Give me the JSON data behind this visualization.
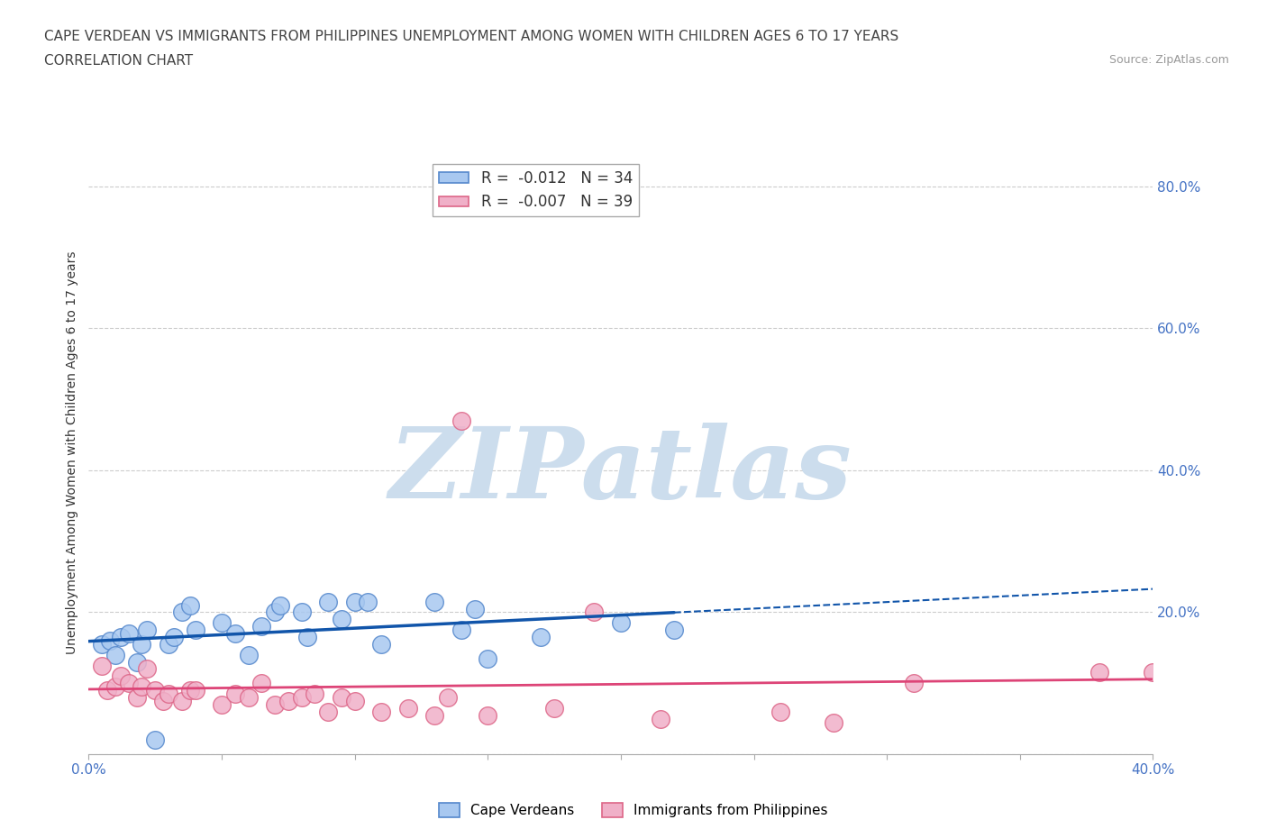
{
  "title_line1": "CAPE VERDEAN VS IMMIGRANTS FROM PHILIPPINES UNEMPLOYMENT AMONG WOMEN WITH CHILDREN AGES 6 TO 17 YEARS",
  "title_line2": "CORRELATION CHART",
  "source": "Source: ZipAtlas.com",
  "ylabel": "Unemployment Among Women with Children Ages 6 to 17 years",
  "xlim": [
    0.0,
    0.4
  ],
  "ylim": [
    0.0,
    0.85
  ],
  "xticks": [
    0.0,
    0.05,
    0.1,
    0.15,
    0.2,
    0.25,
    0.3,
    0.35,
    0.4
  ],
  "xticklabels": [
    "0.0%",
    "",
    "",
    "",
    "",
    "",
    "",
    "",
    "40.0%"
  ],
  "yticks": [
    0.0,
    0.2,
    0.4,
    0.6,
    0.8
  ],
  "yticklabels": [
    "",
    "20.0%",
    "40.0%",
    "60.0%",
    "80.0%"
  ],
  "grid_color": "#cccccc",
  "background_color": "#ffffff",
  "watermark": "ZIPatlas",
  "watermark_color": "#ccdded",
  "blue_color": "#a8c8f0",
  "pink_color": "#f0b0c8",
  "blue_edge": "#5588cc",
  "pink_edge": "#dd6688",
  "blue_trendline_color": "#1155aa",
  "pink_trendline_color": "#dd4477",
  "legend_blue_R": "-0.012",
  "legend_blue_N": "34",
  "legend_pink_R": "-0.007",
  "legend_pink_N": "39",
  "tick_color": "#4472c4",
  "blue_x": [
    0.005,
    0.008,
    0.01,
    0.012,
    0.015,
    0.018,
    0.02,
    0.022,
    0.025,
    0.03,
    0.032,
    0.035,
    0.038,
    0.04,
    0.05,
    0.055,
    0.06,
    0.065,
    0.07,
    0.072,
    0.08,
    0.082,
    0.09,
    0.095,
    0.1,
    0.105,
    0.11,
    0.13,
    0.14,
    0.145,
    0.15,
    0.17,
    0.2,
    0.22
  ],
  "blue_y": [
    0.155,
    0.16,
    0.14,
    0.165,
    0.17,
    0.13,
    0.155,
    0.175,
    0.02,
    0.155,
    0.165,
    0.2,
    0.21,
    0.175,
    0.185,
    0.17,
    0.14,
    0.18,
    0.2,
    0.21,
    0.2,
    0.165,
    0.215,
    0.19,
    0.215,
    0.215,
    0.155,
    0.215,
    0.175,
    0.205,
    0.135,
    0.165,
    0.185,
    0.175
  ],
  "pink_x": [
    0.005,
    0.007,
    0.01,
    0.012,
    0.015,
    0.018,
    0.02,
    0.022,
    0.025,
    0.028,
    0.03,
    0.035,
    0.038,
    0.04,
    0.05,
    0.055,
    0.06,
    0.065,
    0.07,
    0.075,
    0.08,
    0.085,
    0.09,
    0.095,
    0.1,
    0.11,
    0.12,
    0.13,
    0.135,
    0.14,
    0.15,
    0.175,
    0.19,
    0.215,
    0.26,
    0.28,
    0.31,
    0.38,
    0.4
  ],
  "pink_y": [
    0.125,
    0.09,
    0.095,
    0.11,
    0.1,
    0.08,
    0.095,
    0.12,
    0.09,
    0.075,
    0.085,
    0.075,
    0.09,
    0.09,
    0.07,
    0.085,
    0.08,
    0.1,
    0.07,
    0.075,
    0.08,
    0.085,
    0.06,
    0.08,
    0.075,
    0.06,
    0.065,
    0.055,
    0.08,
    0.47,
    0.055,
    0.065,
    0.2,
    0.05,
    0.06,
    0.045,
    0.1,
    0.115,
    0.115
  ]
}
